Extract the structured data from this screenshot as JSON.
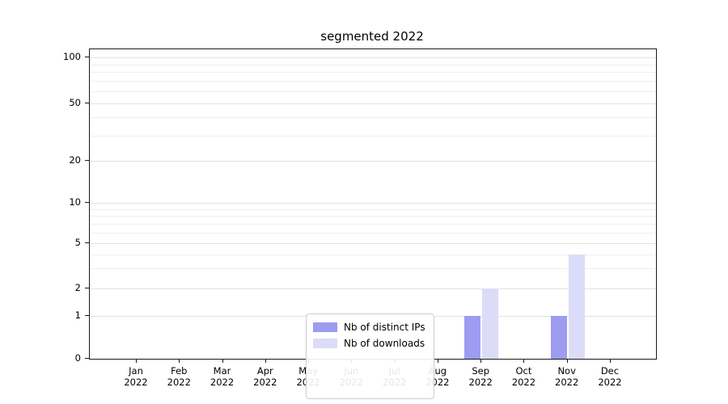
{
  "title": "segmented 2022",
  "chart_data": {
    "type": "bar",
    "title": "segmented 2022",
    "xlabel": "",
    "ylabel": "",
    "categories": [
      "Jan",
      "Feb",
      "Mar",
      "Apr",
      "May",
      "Jun",
      "Jul",
      "Aug",
      "Sep",
      "Oct",
      "Nov",
      "Dec"
    ],
    "year": "2022",
    "series": [
      {
        "name": "Nb of distinct IPs",
        "color": "#9c9cf0",
        "values": [
          0,
          0,
          0,
          0,
          0,
          0,
          0,
          0,
          1,
          0,
          1,
          0
        ]
      },
      {
        "name": "Nb of downloads",
        "color": "#dcdcf8",
        "values": [
          0,
          0,
          0,
          0,
          0,
          0,
          0,
          0,
          2,
          0,
          4,
          0
        ]
      }
    ],
    "y_ticks": [
      0,
      1,
      2,
      5,
      10,
      20,
      50,
      100
    ],
    "y_minor_gridlines": [
      3,
      4,
      6,
      7,
      8,
      9,
      30,
      40,
      60,
      70,
      80,
      90
    ],
    "y_scale": "symlog-like with ticks 0,1,2,5,10,20,50,100",
    "grid": "horizontal",
    "legend_position": "lower center inside plot"
  },
  "legend": {
    "items": [
      {
        "label": "Nb of distinct IPs"
      },
      {
        "label": "Nb of downloads"
      }
    ]
  }
}
